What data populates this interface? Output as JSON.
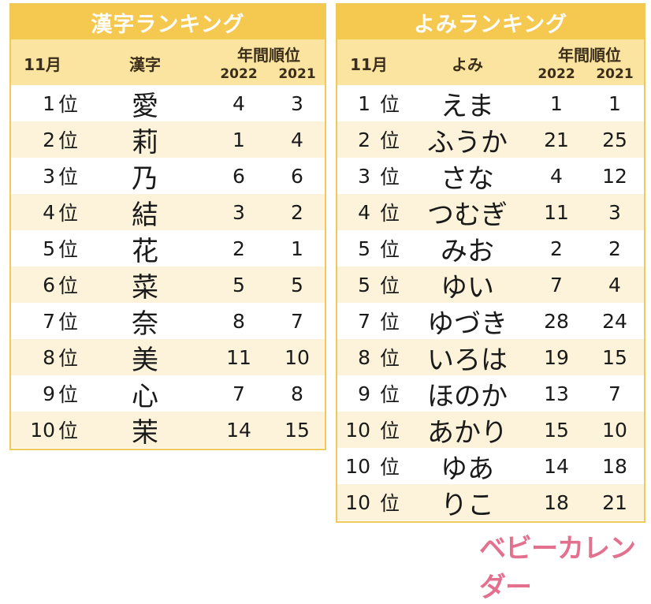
{
  "kanji_ranking": {
    "title": "漢字ランキング",
    "header": {
      "month": "11月",
      "column": "漢字",
      "annual": "年間順位",
      "year1": "2022",
      "year2": "2021"
    },
    "rank_suffix": "位",
    "rows": [
      {
        "rank": "1",
        "name": "愛",
        "y2022": "4",
        "y2021": "3"
      },
      {
        "rank": "2",
        "name": "莉",
        "y2022": "1",
        "y2021": "4"
      },
      {
        "rank": "3",
        "name": "乃",
        "y2022": "6",
        "y2021": "6"
      },
      {
        "rank": "4",
        "name": "結",
        "y2022": "3",
        "y2021": "2"
      },
      {
        "rank": "5",
        "name": "花",
        "y2022": "2",
        "y2021": "1"
      },
      {
        "rank": "6",
        "name": "菜",
        "y2022": "5",
        "y2021": "5"
      },
      {
        "rank": "7",
        "name": "奈",
        "y2022": "8",
        "y2021": "7"
      },
      {
        "rank": "8",
        "name": "美",
        "y2022": "11",
        "y2021": "10"
      },
      {
        "rank": "9",
        "name": "心",
        "y2022": "7",
        "y2021": "8"
      },
      {
        "rank": "10",
        "name": "茉",
        "y2022": "14",
        "y2021": "15"
      }
    ]
  },
  "yomi_ranking": {
    "title": "よみランキング",
    "header": {
      "month": "11月",
      "column": "よみ",
      "annual": "年間順位",
      "year1": "2022",
      "year2": "2021"
    },
    "rank_suffix": "位",
    "rows": [
      {
        "rank": "1",
        "name": "えま",
        "y2022": "1",
        "y2021": "1"
      },
      {
        "rank": "2",
        "name": "ふうか",
        "y2022": "21",
        "y2021": "25"
      },
      {
        "rank": "3",
        "name": "さな",
        "y2022": "4",
        "y2021": "12"
      },
      {
        "rank": "4",
        "name": "つむぎ",
        "y2022": "11",
        "y2021": "3"
      },
      {
        "rank": "5",
        "name": "みお",
        "y2022": "2",
        "y2021": "2"
      },
      {
        "rank": "5",
        "name": "ゆい",
        "y2022": "7",
        "y2021": "4"
      },
      {
        "rank": "7",
        "name": "ゆづき",
        "y2022": "28",
        "y2021": "24"
      },
      {
        "rank": "8",
        "name": "いろは",
        "y2022": "19",
        "y2021": "15"
      },
      {
        "rank": "9",
        "name": "ほのか",
        "y2022": "13",
        "y2021": "7"
      },
      {
        "rank": "10",
        "name": "あかり",
        "y2022": "15",
        "y2021": "10"
      },
      {
        "rank": "10",
        "name": "ゆあ",
        "y2022": "14",
        "y2021": "18"
      },
      {
        "rank": "10",
        "name": "りこ",
        "y2022": "18",
        "y2021": "21"
      }
    ]
  },
  "logo": {
    "text": "ベビーカレンダー"
  },
  "colors": {
    "title_bg": "#f5c850",
    "header_bg": "#fbe3a0",
    "alt_row_bg": "#fdf3da",
    "border": "#f0c95a",
    "logo": "#e4708f"
  }
}
